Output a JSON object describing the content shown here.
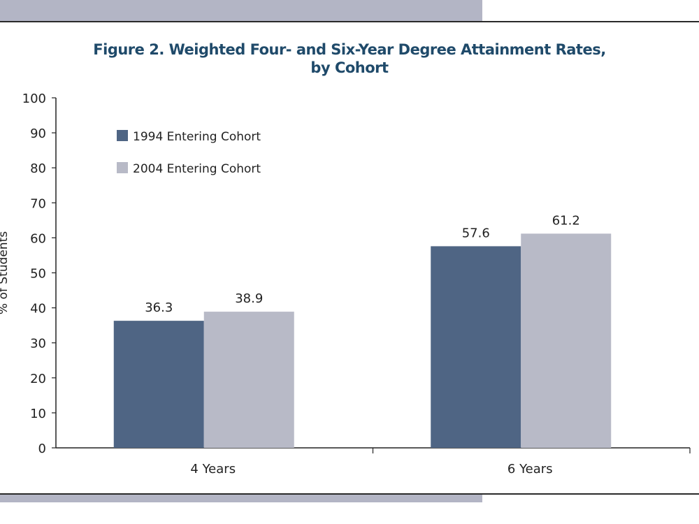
{
  "chart_data": {
    "type": "bar",
    "title": "Figure 2. Weighted Four- and Six-Year Degree Attainment Rates, by Cohort",
    "title_lines": [
      "Figure 2. Weighted Four- and Six-Year Degree Attainment Rates,",
      "by Cohort"
    ],
    "ylabel": "% of Students",
    "xlabel": "",
    "categories": [
      "4 Years",
      "6 Years"
    ],
    "series": [
      {
        "name": "1994 Entering Cohort",
        "values": [
          36.3,
          57.6
        ],
        "color": "#4f6584"
      },
      {
        "name": "2004 Entering Cohort",
        "values": [
          38.9,
          61.2
        ],
        "color": "#b8bac7"
      }
    ],
    "data_labels": [
      [
        "36.3",
        "57.6"
      ],
      [
        "38.9",
        "61.2"
      ]
    ],
    "ylim": [
      0,
      100
    ],
    "yticks": [
      0,
      10,
      20,
      30,
      40,
      50,
      60,
      70,
      80,
      90,
      100
    ],
    "grid": false,
    "legend": "top-left"
  },
  "colors": {
    "title": "#1f4a6a",
    "band": "#b3b5c5"
  }
}
